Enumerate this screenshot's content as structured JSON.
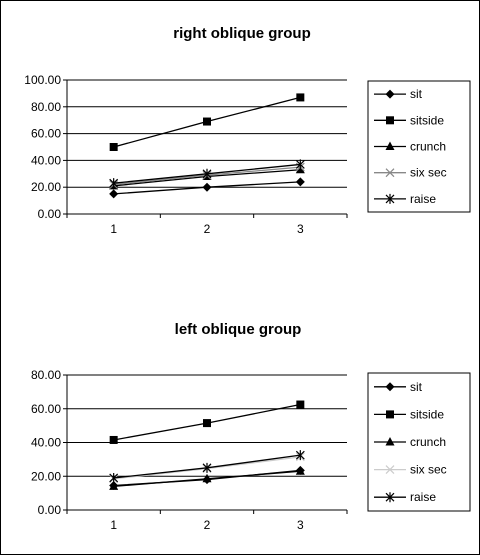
{
  "chart_data": [
    {
      "type": "line",
      "title": "right oblique group",
      "categories": [
        "1",
        "2",
        "3"
      ],
      "ylim": [
        0,
        100
      ],
      "yticks": [
        "0.00",
        "20.00",
        "40.00",
        "60.00",
        "80.00",
        "100.00"
      ],
      "grid": true,
      "legend_position": "right",
      "series": [
        {
          "name": "sit",
          "marker": "diamond",
          "color": "#000000",
          "values": [
            15,
            20,
            24
          ]
        },
        {
          "name": "sitside",
          "marker": "square",
          "color": "#000000",
          "values": [
            50,
            69,
            87
          ]
        },
        {
          "name": "crunch",
          "marker": "triangle",
          "color": "#000000",
          "values": [
            21,
            28,
            33
          ]
        },
        {
          "name": "six sec",
          "marker": "x",
          "color": "#888888",
          "values": [
            22,
            29,
            35
          ]
        },
        {
          "name": "raise",
          "marker": "asterisk",
          "color": "#000000",
          "values": [
            23,
            30,
            37
          ]
        }
      ]
    },
    {
      "type": "line",
      "title": "left oblique group",
      "categories": [
        "1",
        "2",
        "3"
      ],
      "ylim": [
        0,
        80
      ],
      "yticks": [
        "0.00",
        "20.00",
        "40.00",
        "60.00",
        "80.00"
      ],
      "grid": true,
      "legend_position": "right",
      "series": [
        {
          "name": "sit",
          "marker": "diamond",
          "color": "#000000",
          "values": [
            14.5,
            18,
            23.5
          ]
        },
        {
          "name": "sitside",
          "marker": "square",
          "color": "#000000",
          "values": [
            41.5,
            51.5,
            62.5
          ]
        },
        {
          "name": "crunch",
          "marker": "triangle",
          "color": "#000000",
          "values": [
            14,
            18.5,
            23
          ]
        },
        {
          "name": "six sec",
          "marker": "x",
          "color": "#cccccc",
          "values": [
            18.5,
            24.5,
            31.5
          ]
        },
        {
          "name": "raise",
          "marker": "asterisk",
          "color": "#000000",
          "values": [
            19,
            25,
            32.5
          ]
        }
      ]
    }
  ]
}
